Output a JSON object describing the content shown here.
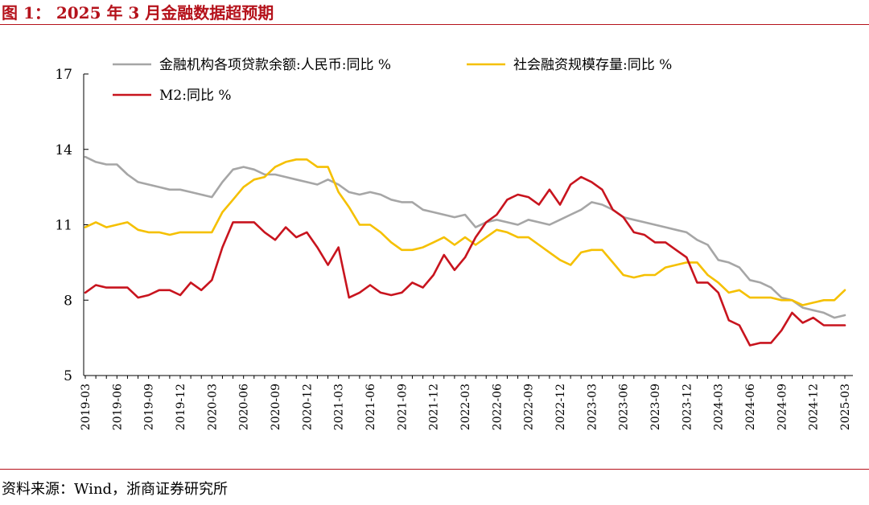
{
  "header": {
    "figure_title": "图 1：  2025 年 3 月金融数据超预期"
  },
  "footer": {
    "source": "资料来源：Wind，浙商证券研究所"
  },
  "colors": {
    "accent": "#b5121b",
    "series_gray": "#a6a6a6",
    "series_yellow": "#f5c000",
    "series_red": "#c8141e"
  },
  "chart_data": {
    "type": "line",
    "title": "",
    "xlabel": "",
    "ylabel": "",
    "ylim": [
      5,
      17
    ],
    "yticks": [
      5,
      8,
      11,
      14,
      17
    ],
    "xtick_labels": [
      "2019-03",
      "2019-06",
      "2019-09",
      "2019-12",
      "2020-03",
      "2020-06",
      "2020-09",
      "2020-12",
      "2021-03",
      "2021-06",
      "2021-09",
      "2021-12",
      "2022-03",
      "2022-06",
      "2022-09",
      "2022-12",
      "2023-03",
      "2023-06",
      "2023-09",
      "2023-12",
      "2024-03",
      "2024-06",
      "2024-09",
      "2024-12",
      "2025-03"
    ],
    "legend_position": "top",
    "grid": false,
    "series": [
      {
        "name": "金融机构各项贷款余额:人民币:同比 %",
        "color": "#a6a6a6",
        "values": [
          13.7,
          13.5,
          13.4,
          13.4,
          13.0,
          12.7,
          12.6,
          12.5,
          12.4,
          12.4,
          12.3,
          12.2,
          12.1,
          12.7,
          13.2,
          13.3,
          13.2,
          13.0,
          13.0,
          12.9,
          12.8,
          12.7,
          12.6,
          12.8,
          12.6,
          12.3,
          12.2,
          12.3,
          12.2,
          12.0,
          11.9,
          11.9,
          11.6,
          11.5,
          11.4,
          11.3,
          11.4,
          10.9,
          11.1,
          11.2,
          11.1,
          11.0,
          11.2,
          11.1,
          11.0,
          11.2,
          11.4,
          11.6,
          11.9,
          11.8,
          11.6,
          11.3,
          11.2,
          11.1,
          11.0,
          10.9,
          10.8,
          10.7,
          10.4,
          10.2,
          9.6,
          9.5,
          9.3,
          8.8,
          8.7,
          8.5,
          8.1,
          8.0,
          7.7,
          7.6,
          7.5,
          7.3,
          7.4
        ]
      },
      {
        "name": "社会融资规模存量:同比 %",
        "color": "#f5c000",
        "values": [
          10.9,
          11.1,
          10.9,
          11.0,
          11.1,
          10.8,
          10.7,
          10.7,
          10.6,
          10.7,
          10.7,
          10.7,
          10.7,
          11.5,
          12.0,
          12.5,
          12.8,
          12.9,
          13.3,
          13.5,
          13.6,
          13.6,
          13.3,
          13.3,
          12.3,
          11.7,
          11.0,
          11.0,
          10.7,
          10.3,
          10.0,
          10.0,
          10.1,
          10.3,
          10.5,
          10.2,
          10.5,
          10.2,
          10.5,
          10.8,
          10.7,
          10.5,
          10.5,
          10.2,
          9.9,
          9.6,
          9.4,
          9.9,
          10.0,
          10.0,
          9.5,
          9.0,
          8.9,
          9.0,
          9.0,
          9.3,
          9.4,
          9.5,
          9.5,
          9.0,
          8.7,
          8.3,
          8.4,
          8.1,
          8.1,
          8.1,
          8.0,
          8.0,
          7.8,
          7.9,
          8.0,
          8.0,
          8.4
        ]
      },
      {
        "name": "M2:同比 %",
        "color": "#c8141e",
        "values": [
          8.3,
          8.6,
          8.5,
          8.5,
          8.5,
          8.1,
          8.2,
          8.4,
          8.4,
          8.2,
          8.7,
          8.4,
          8.8,
          10.1,
          11.1,
          11.1,
          11.1,
          10.7,
          10.4,
          10.9,
          10.5,
          10.7,
          10.1,
          9.4,
          10.1,
          8.1,
          8.3,
          8.6,
          8.3,
          8.2,
          8.3,
          8.7,
          8.5,
          9.0,
          9.8,
          9.2,
          9.7,
          10.5,
          11.1,
          11.4,
          12.0,
          12.2,
          12.1,
          11.8,
          12.4,
          11.8,
          12.6,
          12.9,
          12.7,
          12.4,
          11.6,
          11.3,
          10.7,
          10.6,
          10.3,
          10.3,
          10.0,
          9.7,
          8.7,
          8.7,
          8.3,
          7.2,
          7.0,
          6.2,
          6.3,
          6.3,
          6.8,
          7.5,
          7.1,
          7.3,
          7.0,
          7.0,
          7.0
        ]
      }
    ]
  }
}
